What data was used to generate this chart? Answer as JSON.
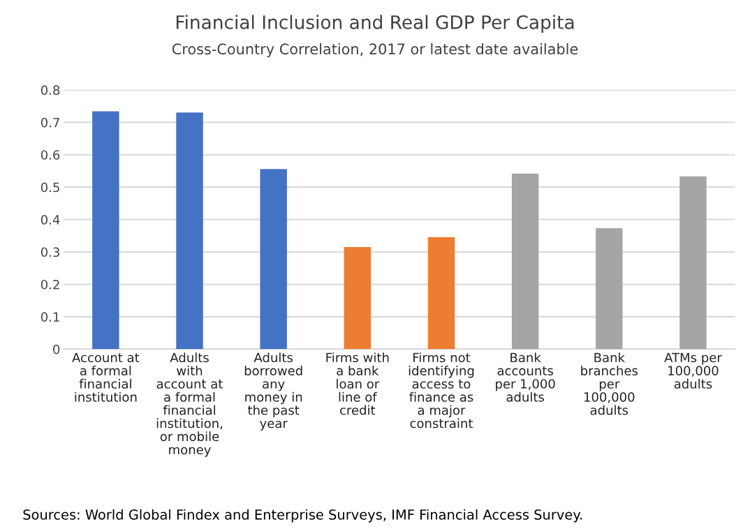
{
  "chart_data": {
    "type": "bar",
    "title": "Financial Inclusion and Real GDP Per Capita",
    "subtitle": "Cross-Country Correlation, 2017 or latest date available",
    "categories": [
      "Account at\na formal\nfinancial\ninstitution",
      "Adults\nwith\naccount at\na formal\nfinancial\ninstitution,\nor mobile\nmoney",
      "Adults\nborrowed\nany\nmoney in\nthe past\nyear",
      "Firms with\na bank\nloan or\nline of\ncredit",
      "Firms not\nidentifying\naccess to\nfinance as\na major\nconstraint",
      "Bank\naccounts\nper 1,000\nadults",
      "Bank\nbranches\nper\n100,000\nadults",
      "ATMs per\n100,000\nadults"
    ],
    "values": [
      0.734,
      0.73,
      0.556,
      0.315,
      0.346,
      0.542,
      0.373,
      0.533
    ],
    "colors": [
      "#4472c4",
      "#4472c4",
      "#4472c4",
      "#ed7d31",
      "#ed7d31",
      "#a5a5a5",
      "#a5a5a5",
      "#a5a5a5"
    ],
    "ylim": [
      0,
      0.8
    ],
    "yticks": [
      {
        "value": 0,
        "label": "0"
      },
      0.1,
      0.2,
      0.3,
      0.4,
      0.5,
      0.6,
      0.7,
      0.8
    ],
    "grid": "y",
    "annotations": [
      "Sources: World Global Findex and Enterprise Surveys, IMF Financial Access Survey."
    ]
  }
}
